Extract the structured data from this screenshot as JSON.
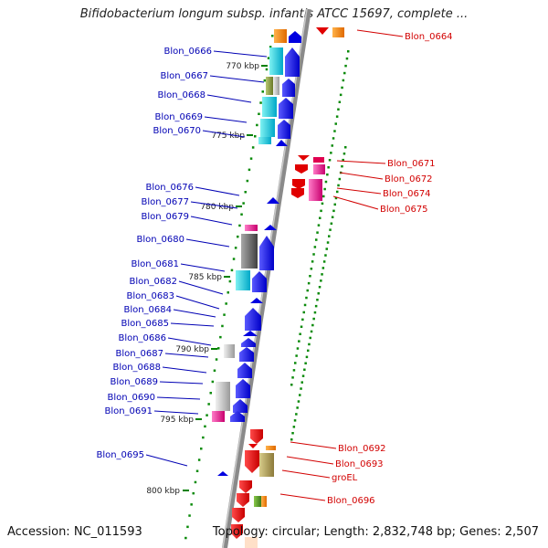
{
  "title": "Bifidobacterium longum subsp. infantis ATCC 15697, complete ...",
  "footer": {
    "accession": "Accession: NC_011593",
    "topology": "Topology: circular; Length: 2,832,748 bp; Genes: 2,507"
  },
  "ticks": [
    "770 kbp",
    "775 kbp",
    "780 kbp",
    "785 kbp",
    "790 kbp",
    "795 kbp",
    "800 kbp"
  ],
  "colors": {
    "left_labels": "#0000b4",
    "right_labels": "#d20000",
    "backbone": "#8a8a8a",
    "tick": "#008000"
  },
  "left_labels": [
    "Blon_0666",
    "Blon_0667",
    "Blon_0668",
    "Blon_0669",
    "Blon_0670",
    "Blon_0676",
    "Blon_0677",
    "Blon_0679",
    "Blon_0680",
    "Blon_0681",
    "Blon_0682",
    "Blon_0683",
    "Blon_0684",
    "Blon_0685",
    "Blon_0686",
    "Blon_0687",
    "Blon_0688",
    "Blon_0689",
    "Blon_0690",
    "Blon_0691",
    "Blon_0695"
  ],
  "right_labels": [
    "Blon_0664",
    "Blon_0671",
    "Blon_0672",
    "Blon_0674",
    "Blon_0675",
    "Blon_0692",
    "Blon_0693",
    "groEL",
    "Blon_0696"
  ]
}
